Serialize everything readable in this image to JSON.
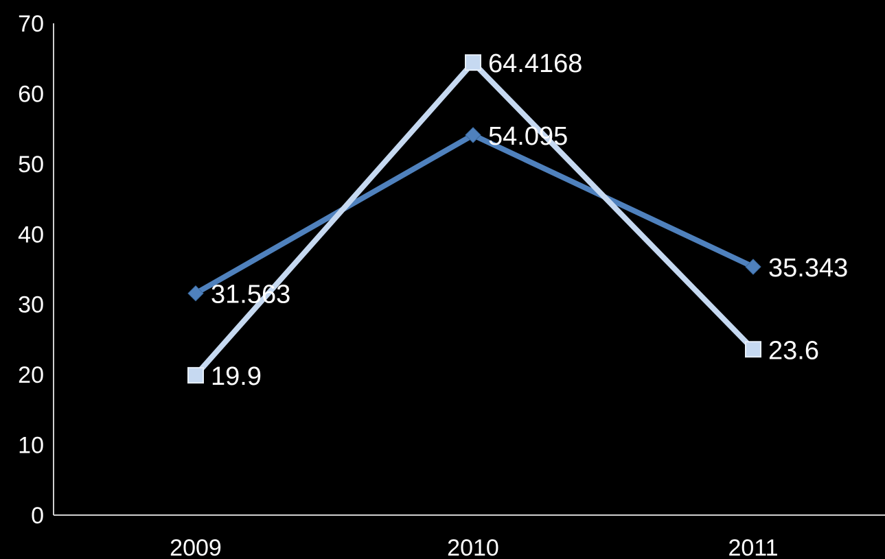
{
  "chart_data": {
    "type": "line",
    "categories": [
      "2009",
      "2010",
      "2011"
    ],
    "ylim": [
      0,
      70
    ],
    "yticks": [
      0,
      10,
      20,
      30,
      40,
      50,
      60,
      70
    ],
    "grid": false,
    "legend": "none",
    "background": "#000000",
    "series": [
      {
        "values": [
          31.563,
          54.095,
          35.343
        ],
        "labels": [
          "31.563",
          "54.095",
          "35.343"
        ],
        "marker": "diamond",
        "color": "#4f81bd"
      },
      {
        "values": [
          19.9,
          64.4168,
          23.6
        ],
        "labels": [
          "19.9",
          "64.4168",
          "23.6"
        ],
        "marker": "square",
        "color": "#c6d9f1"
      }
    ]
  }
}
